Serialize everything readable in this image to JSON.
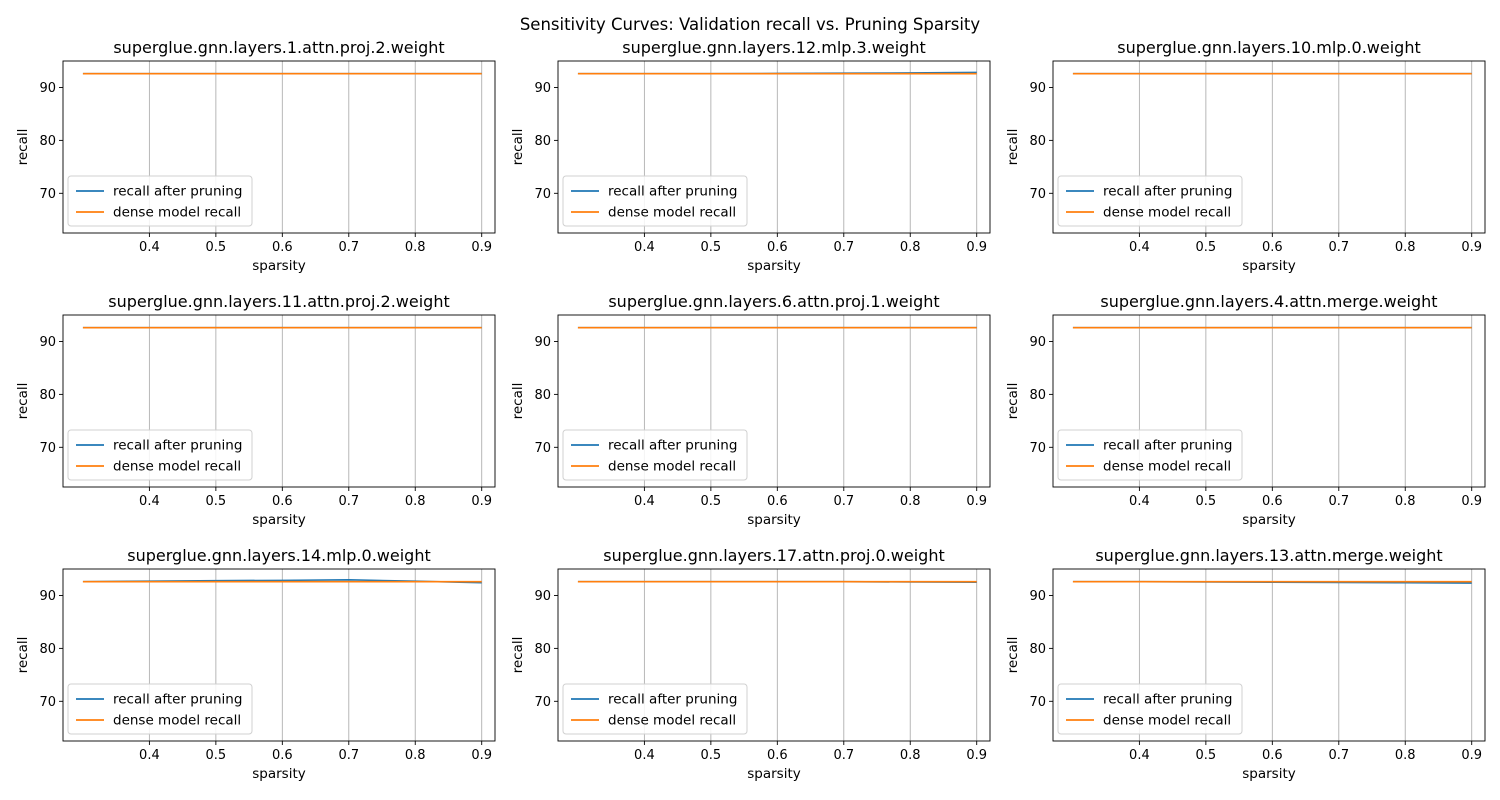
{
  "figure": {
    "title": "Sensitivity Curves: Validation recall vs. Pruning Sparsity"
  },
  "colors": {
    "pruned": "#1f77b4",
    "dense": "#ff7f0e",
    "grid": "#b0b0b0"
  },
  "chart_data": [
    {
      "type": "line",
      "title": "superglue.gnn.layers.1.attn.proj.2.weight",
      "xlabel": "sparsity",
      "ylabel": "recall",
      "xlim": [
        0.27,
        0.92
      ],
      "ylim": [
        62.5,
        95
      ],
      "xticks": [
        0.4,
        0.5,
        0.6,
        0.7,
        0.8,
        0.9
      ],
      "yticks": [
        70,
        80,
        90
      ],
      "grid": "x",
      "legend": "lower-left",
      "x": [
        0.3,
        0.4,
        0.5,
        0.6,
        0.7,
        0.8,
        0.9
      ],
      "series": [
        {
          "name": "recall after pruning",
          "values": [
            92.6,
            92.6,
            92.6,
            92.6,
            92.6,
            92.6,
            92.6
          ]
        },
        {
          "name": "dense model recall",
          "values": [
            92.6,
            92.6,
            92.6,
            92.6,
            92.6,
            92.6,
            92.6
          ]
        }
      ]
    },
    {
      "type": "line",
      "title": "superglue.gnn.layers.12.mlp.3.weight",
      "xlabel": "sparsity",
      "ylabel": "recall",
      "xlim": [
        0.27,
        0.92
      ],
      "ylim": [
        62.5,
        95
      ],
      "xticks": [
        0.4,
        0.5,
        0.6,
        0.7,
        0.8,
        0.9
      ],
      "yticks": [
        70,
        80,
        90
      ],
      "grid": "x",
      "legend": "lower-left",
      "x": [
        0.3,
        0.4,
        0.5,
        0.6,
        0.7,
        0.8,
        0.9
      ],
      "series": [
        {
          "name": "recall after pruning",
          "values": [
            92.6,
            92.6,
            92.6,
            92.65,
            92.7,
            92.75,
            92.85
          ]
        },
        {
          "name": "dense model recall",
          "values": [
            92.6,
            92.6,
            92.6,
            92.6,
            92.6,
            92.6,
            92.6
          ]
        }
      ]
    },
    {
      "type": "line",
      "title": "superglue.gnn.layers.10.mlp.0.weight",
      "xlabel": "sparsity",
      "ylabel": "recall",
      "xlim": [
        0.27,
        0.92
      ],
      "ylim": [
        62.5,
        95
      ],
      "xticks": [
        0.4,
        0.5,
        0.6,
        0.7,
        0.8,
        0.9
      ],
      "yticks": [
        70,
        80,
        90
      ],
      "grid": "x",
      "legend": "lower-left",
      "x": [
        0.3,
        0.4,
        0.5,
        0.6,
        0.7,
        0.8,
        0.9
      ],
      "series": [
        {
          "name": "recall after pruning",
          "values": [
            92.6,
            92.6,
            92.6,
            92.6,
            92.6,
            92.6,
            92.6
          ]
        },
        {
          "name": "dense model recall",
          "values": [
            92.6,
            92.6,
            92.6,
            92.6,
            92.6,
            92.6,
            92.6
          ]
        }
      ]
    },
    {
      "type": "line",
      "title": "superglue.gnn.layers.11.attn.proj.2.weight",
      "xlabel": "sparsity",
      "ylabel": "recall",
      "xlim": [
        0.27,
        0.92
      ],
      "ylim": [
        62.5,
        95
      ],
      "xticks": [
        0.4,
        0.5,
        0.6,
        0.7,
        0.8,
        0.9
      ],
      "yticks": [
        70,
        80,
        90
      ],
      "grid": "x",
      "legend": "lower-left",
      "x": [
        0.3,
        0.4,
        0.5,
        0.6,
        0.7,
        0.8,
        0.9
      ],
      "series": [
        {
          "name": "recall after pruning",
          "values": [
            92.6,
            92.6,
            92.6,
            92.6,
            92.6,
            92.6,
            92.6
          ]
        },
        {
          "name": "dense model recall",
          "values": [
            92.6,
            92.6,
            92.6,
            92.6,
            92.6,
            92.6,
            92.6
          ]
        }
      ]
    },
    {
      "type": "line",
      "title": "superglue.gnn.layers.6.attn.proj.1.weight",
      "xlabel": "sparsity",
      "ylabel": "recall",
      "xlim": [
        0.27,
        0.92
      ],
      "ylim": [
        62.5,
        95
      ],
      "xticks": [
        0.4,
        0.5,
        0.6,
        0.7,
        0.8,
        0.9
      ],
      "yticks": [
        70,
        80,
        90
      ],
      "grid": "x",
      "legend": "lower-left",
      "x": [
        0.3,
        0.4,
        0.5,
        0.6,
        0.7,
        0.8,
        0.9
      ],
      "series": [
        {
          "name": "recall after pruning",
          "values": [
            92.6,
            92.6,
            92.6,
            92.6,
            92.6,
            92.6,
            92.6
          ]
        },
        {
          "name": "dense model recall",
          "values": [
            92.6,
            92.6,
            92.6,
            92.6,
            92.6,
            92.6,
            92.6
          ]
        }
      ]
    },
    {
      "type": "line",
      "title": "superglue.gnn.layers.4.attn.merge.weight",
      "xlabel": "sparsity",
      "ylabel": "recall",
      "xlim": [
        0.27,
        0.92
      ],
      "ylim": [
        62.5,
        95
      ],
      "xticks": [
        0.4,
        0.5,
        0.6,
        0.7,
        0.8,
        0.9
      ],
      "yticks": [
        70,
        80,
        90
      ],
      "grid": "x",
      "legend": "lower-left",
      "x": [
        0.3,
        0.4,
        0.5,
        0.6,
        0.7,
        0.8,
        0.9
      ],
      "series": [
        {
          "name": "recall after pruning",
          "values": [
            92.6,
            92.6,
            92.6,
            92.6,
            92.6,
            92.6,
            92.6
          ]
        },
        {
          "name": "dense model recall",
          "values": [
            92.6,
            92.6,
            92.6,
            92.6,
            92.6,
            92.6,
            92.6
          ]
        }
      ]
    },
    {
      "type": "line",
      "title": "superglue.gnn.layers.14.mlp.0.weight",
      "xlabel": "sparsity",
      "ylabel": "recall",
      "xlim": [
        0.27,
        0.92
      ],
      "ylim": [
        62.5,
        95
      ],
      "xticks": [
        0.4,
        0.5,
        0.6,
        0.7,
        0.8,
        0.9
      ],
      "yticks": [
        70,
        80,
        90
      ],
      "grid": "x",
      "legend": "lower-left",
      "x": [
        0.3,
        0.4,
        0.5,
        0.6,
        0.7,
        0.8,
        0.9
      ],
      "series": [
        {
          "name": "recall after pruning",
          "values": [
            92.6,
            92.7,
            92.8,
            92.85,
            92.95,
            92.7,
            92.4
          ]
        },
        {
          "name": "dense model recall",
          "values": [
            92.6,
            92.6,
            92.6,
            92.6,
            92.6,
            92.6,
            92.6
          ]
        }
      ]
    },
    {
      "type": "line",
      "title": "superglue.gnn.layers.17.attn.proj.0.weight",
      "xlabel": "sparsity",
      "ylabel": "recall",
      "xlim": [
        0.27,
        0.92
      ],
      "ylim": [
        62.5,
        95
      ],
      "xticks": [
        0.4,
        0.5,
        0.6,
        0.7,
        0.8,
        0.9
      ],
      "yticks": [
        70,
        80,
        90
      ],
      "grid": "x",
      "legend": "lower-left",
      "x": [
        0.3,
        0.4,
        0.5,
        0.6,
        0.7,
        0.8,
        0.9
      ],
      "series": [
        {
          "name": "recall after pruning",
          "values": [
            92.6,
            92.6,
            92.6,
            92.6,
            92.6,
            92.55,
            92.5
          ]
        },
        {
          "name": "dense model recall",
          "values": [
            92.6,
            92.6,
            92.6,
            92.6,
            92.6,
            92.6,
            92.6
          ]
        }
      ]
    },
    {
      "type": "line",
      "title": "superglue.gnn.layers.13.attn.merge.weight",
      "xlabel": "sparsity",
      "ylabel": "recall",
      "xlim": [
        0.27,
        0.92
      ],
      "ylim": [
        62.5,
        95
      ],
      "xticks": [
        0.4,
        0.5,
        0.6,
        0.7,
        0.8,
        0.9
      ],
      "yticks": [
        70,
        80,
        90
      ],
      "grid": "x",
      "legend": "lower-left",
      "x": [
        0.3,
        0.4,
        0.5,
        0.6,
        0.7,
        0.8,
        0.9
      ],
      "series": [
        {
          "name": "recall after pruning",
          "values": [
            92.6,
            92.6,
            92.55,
            92.5,
            92.45,
            92.4,
            92.35
          ]
        },
        {
          "name": "dense model recall",
          "values": [
            92.6,
            92.6,
            92.6,
            92.6,
            92.6,
            92.6,
            92.6
          ]
        }
      ]
    }
  ]
}
